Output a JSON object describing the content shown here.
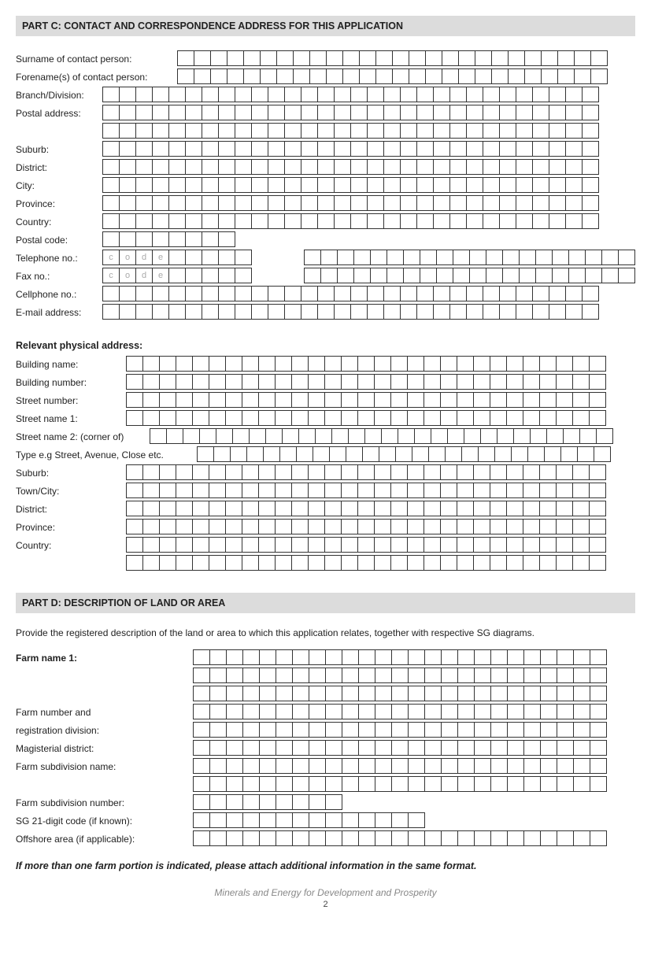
{
  "partC": {
    "header": "PART C: CONTACT AND CORRESPONDENCE ADDRESS FOR THIS APPLICATION",
    "labelWidth": 110,
    "rows": [
      {
        "label": "Surname of contact person:",
        "labelWidthOverride": 205,
        "cells": 26
      },
      {
        "label": "Forename(s) of contact person:",
        "labelWidthOverride": 205,
        "cells": 26
      },
      {
        "label": "Branch/Division:",
        "cells": 30
      },
      {
        "label": "Postal address:",
        "cells": 30
      },
      {
        "label": "",
        "cells": 30
      },
      {
        "label": "Suburb:",
        "cells": 30
      },
      {
        "label": "District:",
        "cells": 30
      },
      {
        "label": "City:",
        "cells": 30
      },
      {
        "label": "Province:",
        "cells": 30
      },
      {
        "label": "Country:",
        "cells": 30
      },
      {
        "label": "Postal code:",
        "cells": 8
      },
      {
        "label": "Telephone no.:",
        "codeCells": 4,
        "restCells": 5,
        "afterGapCells": 20,
        "code": [
          "c",
          "o",
          "d",
          "e"
        ]
      },
      {
        "label": "Fax no.:",
        "codeCells": 4,
        "restCells": 5,
        "afterGapCells": 20,
        "code": [
          "c",
          "o",
          "d",
          "e"
        ]
      },
      {
        "label": "Cellphone no.:",
        "cells": 30
      },
      {
        "label": "E-mail address:",
        "cells": 30
      }
    ],
    "physical": {
      "title": "Relevant physical address:",
      "labelWidth": 140,
      "rows": [
        {
          "label": "Building name:",
          "cells": 29
        },
        {
          "label": "Building number:",
          "cells": 29
        },
        {
          "label": "Street number:",
          "cells": 29
        },
        {
          "label": "Street name 1:",
          "cells": 29
        },
        {
          "label": "Street name 2: (corner of)",
          "labelWidthOverride": 170,
          "cells": 28
        },
        {
          "label": "Type e.g Street, Avenue, Close etc.",
          "labelWidthOverride": 230,
          "cells": 25
        },
        {
          "label": "Suburb:",
          "cells": 29
        },
        {
          "label": "Town/City:",
          "cells": 29
        },
        {
          "label": "District:",
          "cells": 29
        },
        {
          "label": "Province:",
          "cells": 29
        },
        {
          "label": "Country:",
          "cells": 29
        },
        {
          "label": "",
          "cells": 29
        }
      ]
    }
  },
  "partD": {
    "header": "PART D: DESCRIPTION OF LAND OR AREA",
    "instruction": "Provide the registered description of the land or area to which this application relates, together with respective SG diagrams.",
    "labelWidth": 225,
    "rows": [
      {
        "label": "Farm name 1:",
        "bold": true,
        "cells": 25
      },
      {
        "label": "",
        "cells": 25
      },
      {
        "label": "",
        "cells": 25
      },
      {
        "label": "Farm number and",
        "cells": 25
      },
      {
        "label": "registration division:",
        "cells": 25
      },
      {
        "label": "Magisterial district:",
        "cells": 25
      },
      {
        "label": "Farm subdivision name:",
        "cells": 25
      },
      {
        "label": "",
        "cells": 25
      },
      {
        "label": "Farm subdivision number:",
        "cells": 9
      },
      {
        "label": "SG 21-digit code (if known):",
        "cells": 14
      },
      {
        "label": "Offshore area (if applicable):",
        "cells": 25
      }
    ],
    "note": "If more than one farm portion is indicated, please attach additional information in the same format."
  },
  "footer": "Minerals and Energy for Development and Prosperity",
  "pageNumber": "2"
}
